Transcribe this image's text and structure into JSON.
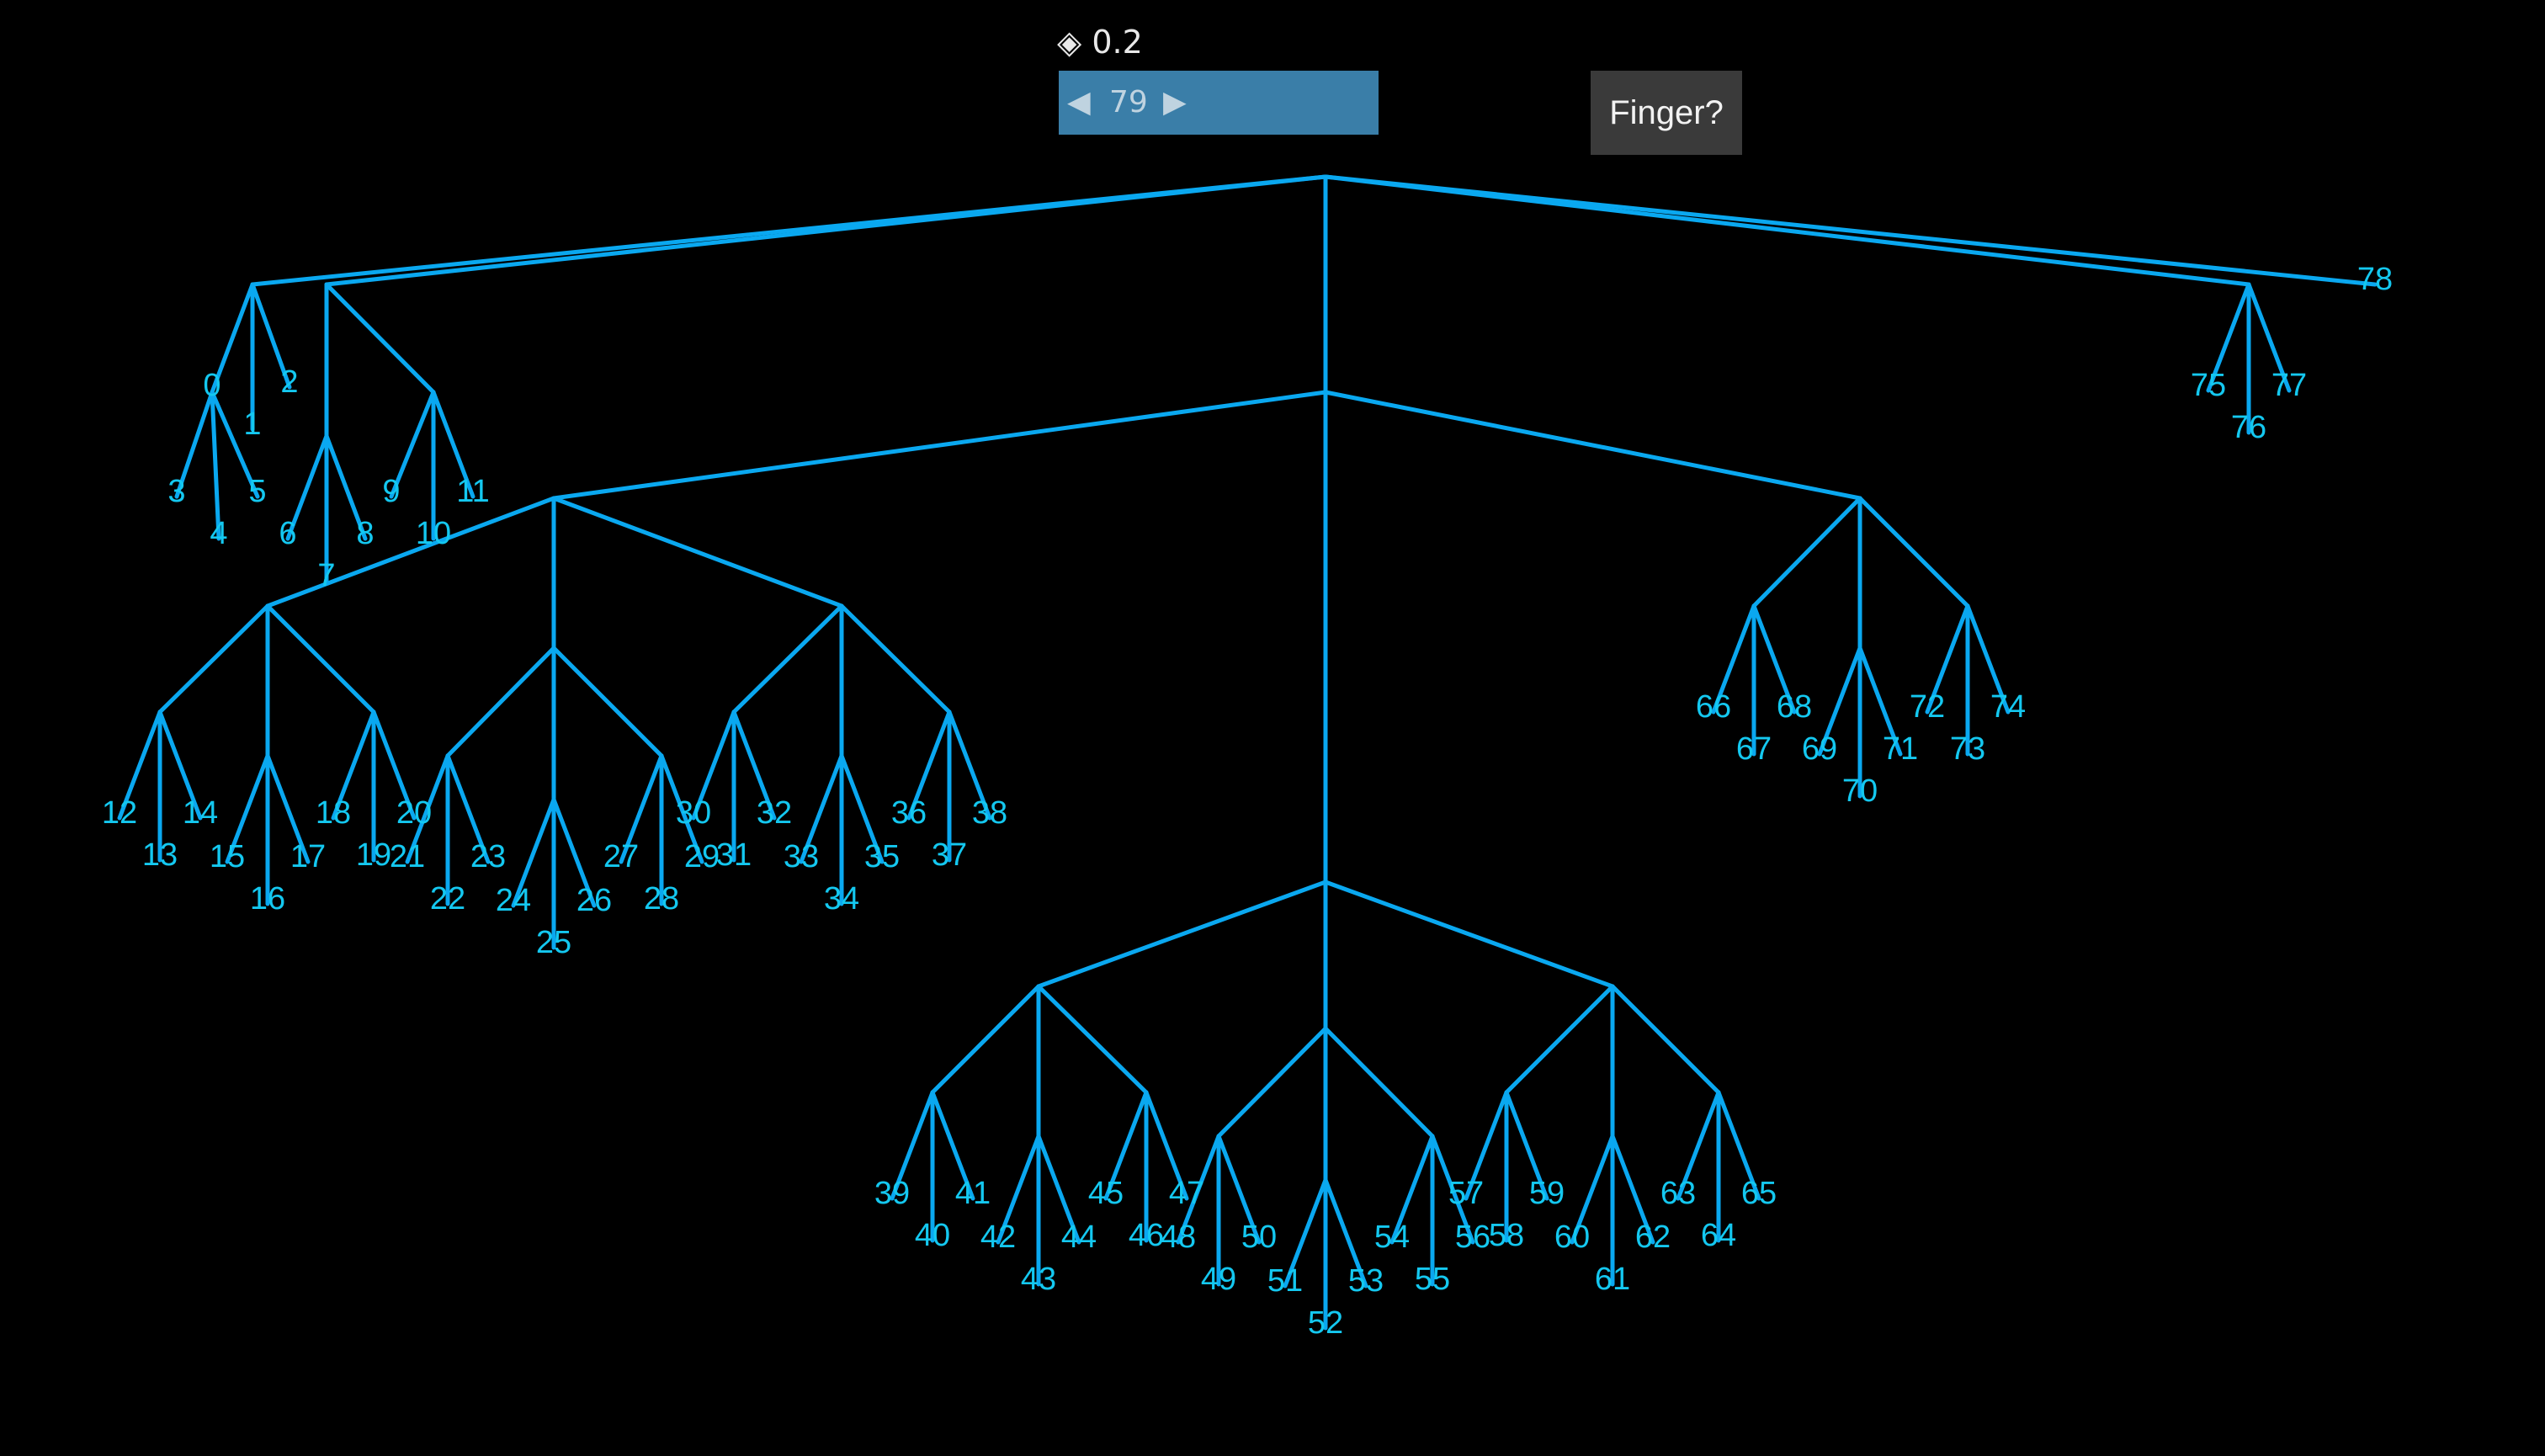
{
  "controls": {
    "zoom_icon": "diamond-icon",
    "zoom_symbol": "◈",
    "zoom_value": "0.2",
    "stepper": {
      "prev_symbol": "◀",
      "value": "79",
      "next_symbol": "▶"
    },
    "finger_button_label": "Finger?"
  },
  "colors": {
    "background": "#000000",
    "edge": "#0aa8f0",
    "label": "#14c8f0",
    "stepper_bg": "#3a7ea8",
    "button_bg": "#3a3a3a"
  },
  "tree": {
    "children": [
      {
        "children": [
          {
            "label": "0",
            "children": [
              {
                "label": "3"
              },
              {
                "label": "4"
              },
              {
                "label": "5"
              }
            ]
          },
          {
            "label": "1"
          },
          {
            "label": "2"
          }
        ]
      },
      {
        "children": [
          {
            "children": [
              {
                "label": "6"
              },
              {
                "label": "7"
              },
              {
                "label": "8"
              }
            ]
          },
          {
            "children": [
              {
                "label": "9"
              },
              {
                "label": "10"
              },
              {
                "label": "11"
              }
            ]
          }
        ]
      },
      {
        "children": [
          {
            "children": [
              {
                "children": [
                  {
                    "children": [
                      {
                        "label": "12"
                      },
                      {
                        "label": "13"
                      },
                      {
                        "label": "14"
                      }
                    ]
                  },
                  {
                    "children": [
                      {
                        "label": "15"
                      },
                      {
                        "label": "16"
                      },
                      {
                        "label": "17"
                      }
                    ]
                  },
                  {
                    "children": [
                      {
                        "label": "18"
                      },
                      {
                        "label": "19"
                      },
                      {
                        "label": "20"
                      }
                    ]
                  }
                ]
              },
              {
                "children": [
                  {
                    "children": [
                      {
                        "label": "21"
                      },
                      {
                        "label": "22"
                      },
                      {
                        "label": "23"
                      }
                    ]
                  },
                  {
                    "children": [
                      {
                        "label": "24"
                      },
                      {
                        "label": "25"
                      },
                      {
                        "label": "26"
                      }
                    ]
                  },
                  {
                    "children": [
                      {
                        "label": "27"
                      },
                      {
                        "label": "28"
                      },
                      {
                        "label": "29"
                      }
                    ]
                  }
                ]
              },
              {
                "children": [
                  {
                    "children": [
                      {
                        "label": "30"
                      },
                      {
                        "label": "31"
                      },
                      {
                        "label": "32"
                      }
                    ]
                  },
                  {
                    "children": [
                      {
                        "label": "33"
                      },
                      {
                        "label": "34"
                      },
                      {
                        "label": "35"
                      }
                    ]
                  },
                  {
                    "children": [
                      {
                        "label": "36"
                      },
                      {
                        "label": "37"
                      },
                      {
                        "label": "38"
                      }
                    ]
                  }
                ]
              }
            ]
          },
          {
            "children": [
              {
                "children": [
                  {
                    "children": [
                      {
                        "label": "39"
                      },
                      {
                        "label": "40"
                      },
                      {
                        "label": "41"
                      }
                    ]
                  },
                  {
                    "children": [
                      {
                        "label": "42"
                      },
                      {
                        "label": "43"
                      },
                      {
                        "label": "44"
                      }
                    ]
                  },
                  {
                    "children": [
                      {
                        "label": "45"
                      },
                      {
                        "label": "46"
                      },
                      {
                        "label": "47"
                      }
                    ]
                  }
                ]
              },
              {
                "children": [
                  {
                    "children": [
                      {
                        "label": "48"
                      },
                      {
                        "label": "49"
                      },
                      {
                        "label": "50"
                      }
                    ]
                  },
                  {
                    "children": [
                      {
                        "label": "51"
                      },
                      {
                        "label": "52"
                      },
                      {
                        "label": "53"
                      }
                    ]
                  },
                  {
                    "children": [
                      {
                        "label": "54"
                      },
                      {
                        "label": "55"
                      },
                      {
                        "label": "56"
                      }
                    ]
                  }
                ]
              },
              {
                "children": [
                  {
                    "children": [
                      {
                        "label": "57"
                      },
                      {
                        "label": "58"
                      },
                      {
                        "label": "59"
                      }
                    ]
                  },
                  {
                    "children": [
                      {
                        "label": "60"
                      },
                      {
                        "label": "61"
                      },
                      {
                        "label": "62"
                      }
                    ]
                  },
                  {
                    "children": [
                      {
                        "label": "63"
                      },
                      {
                        "label": "64"
                      },
                      {
                        "label": "65"
                      }
                    ]
                  }
                ]
              }
            ]
          },
          {
            "children": [
              {
                "children": [
                  {
                    "label": "66"
                  },
                  {
                    "label": "67"
                  },
                  {
                    "label": "68"
                  }
                ]
              },
              {
                "children": [
                  {
                    "label": "69"
                  },
                  {
                    "label": "70"
                  },
                  {
                    "label": "71"
                  }
                ]
              },
              {
                "children": [
                  {
                    "label": "72"
                  },
                  {
                    "label": "73"
                  },
                  {
                    "label": "74"
                  }
                ]
              }
            ]
          }
        ]
      },
      {
        "children": [
          {
            "label": "75"
          },
          {
            "label": "76"
          },
          {
            "label": "77"
          }
        ]
      },
      {
        "label": "78"
      }
    ]
  }
}
